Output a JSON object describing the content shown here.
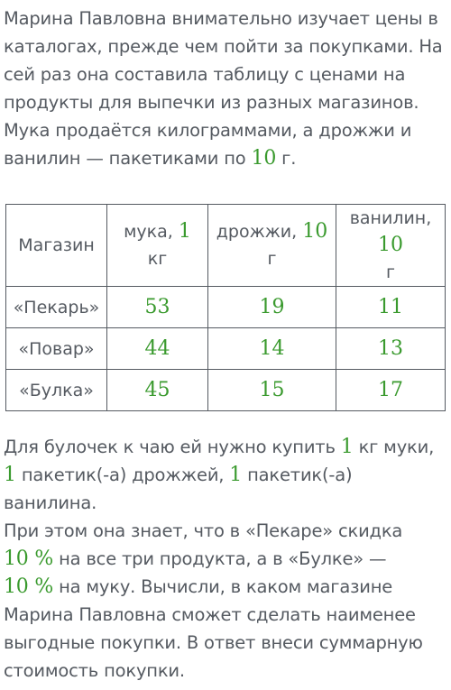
{
  "intro": {
    "line1": "Марина Павловна внимательно изучает цены в",
    "line2": "каталогах, прежде чем пойти за покупками. На",
    "line3": "сей раз она составила таблицу с ценами на",
    "line4": "продукты для выпечки из разных магазинов.",
    "line5": "Мука продаётся килограммами, а дрожжи и",
    "line6_a": "ванилин — пакетиками по",
    "line6_num": "10",
    "line6_b": "г."
  },
  "table": {
    "headers": {
      "store": "Магазин",
      "flour_label": "мука,",
      "flour_num": "1",
      "flour_unit": "кг",
      "yeast_label": "дрожжи,",
      "yeast_num": "10",
      "yeast_unit": "г",
      "vanilla_label": "ванилин,",
      "vanilla_num": "10",
      "vanilla_unit": "г"
    },
    "rows": [
      {
        "store": "«Пекарь»",
        "flour": "53",
        "yeast": "19",
        "vanilla": "11"
      },
      {
        "store": "«Повар»",
        "flour": "44",
        "yeast": "14",
        "vanilla": "13"
      },
      {
        "store": "«Булка»",
        "flour": "45",
        "yeast": "15",
        "vanilla": "17"
      }
    ]
  },
  "task": {
    "l1_a": "Для булочек к чаю ей нужно купить",
    "l1_num": "1",
    "l1_b": "кг муки,",
    "l2_num1": "1",
    "l2_a": "пакетик(-а) дрожжей,",
    "l2_num2": "1",
    "l2_b": "пакетик(-а) ванилина.",
    "l3": "При этом она знает, что в «Пекаре» скидка",
    "l4_num": "10 %",
    "l4_b": "на все три продукта, а в «Булке» —",
    "l5_num": "10 %",
    "l5_b": "на муку. Вычисли, в каком магазине",
    "l6": "Марина Павловна сможет сделать наименее",
    "l7": "выгодные покупки. В ответ внеси суммарную",
    "l8": "стоимость покупки."
  }
}
